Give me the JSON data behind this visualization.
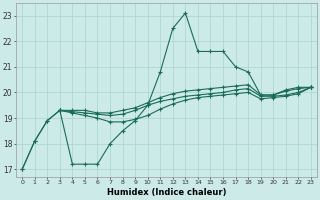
{
  "xlabel": "Humidex (Indice chaleur)",
  "background_color": "#cceae7",
  "grid_color": "#aad4d0",
  "line_color": "#1a6b5a",
  "xlim": [
    -0.5,
    23.5
  ],
  "ylim": [
    16.7,
    23.5
  ],
  "yticks": [
    17,
    18,
    19,
    20,
    21,
    22,
    23
  ],
  "xticks": [
    0,
    1,
    2,
    3,
    4,
    5,
    6,
    7,
    8,
    9,
    10,
    11,
    12,
    13,
    14,
    15,
    16,
    17,
    18,
    19,
    20,
    21,
    22,
    23
  ],
  "line1_x": [
    0,
    1,
    2,
    3,
    4,
    5,
    6,
    7,
    8,
    9,
    10,
    11,
    12,
    13,
    14,
    15,
    16,
    17,
    18,
    19,
    20,
    21,
    22,
    23
  ],
  "line1_y": [
    17.0,
    18.1,
    18.9,
    19.3,
    17.2,
    17.2,
    17.2,
    18.0,
    18.5,
    18.9,
    19.5,
    20.8,
    22.5,
    23.1,
    21.6,
    21.6,
    21.6,
    21.0,
    20.8,
    19.9,
    19.9,
    20.1,
    20.2,
    20.2
  ],
  "line2_x": [
    0,
    1,
    2,
    3,
    4,
    5,
    6,
    7,
    8,
    9,
    10,
    11,
    12,
    13,
    14,
    15,
    16,
    17,
    18,
    19,
    20,
    21,
    22,
    23
  ],
  "line2_y": [
    17.0,
    18.1,
    18.9,
    19.3,
    19.3,
    19.3,
    19.2,
    19.2,
    19.3,
    19.4,
    19.6,
    19.8,
    19.95,
    20.05,
    20.1,
    20.15,
    20.2,
    20.25,
    20.3,
    19.9,
    19.9,
    20.05,
    20.15,
    20.2
  ],
  "line3_x": [
    3,
    4,
    5,
    6,
    7,
    8,
    9,
    10,
    11,
    12,
    13,
    14,
    15,
    16,
    17,
    18,
    19,
    20,
    21,
    22,
    23
  ],
  "line3_y": [
    19.3,
    19.25,
    19.2,
    19.15,
    19.1,
    19.15,
    19.3,
    19.5,
    19.65,
    19.75,
    19.85,
    19.9,
    19.95,
    20.0,
    20.1,
    20.15,
    19.85,
    19.85,
    19.9,
    20.0,
    20.2
  ],
  "line4_x": [
    3,
    4,
    5,
    6,
    7,
    8,
    9,
    10,
    11,
    12,
    13,
    14,
    15,
    16,
    17,
    18,
    19,
    20,
    21,
    22,
    23
  ],
  "line4_y": [
    19.3,
    19.2,
    19.1,
    19.0,
    18.85,
    18.85,
    18.95,
    19.1,
    19.35,
    19.55,
    19.7,
    19.8,
    19.85,
    19.9,
    19.95,
    20.0,
    19.75,
    19.8,
    19.85,
    19.95,
    20.2
  ]
}
